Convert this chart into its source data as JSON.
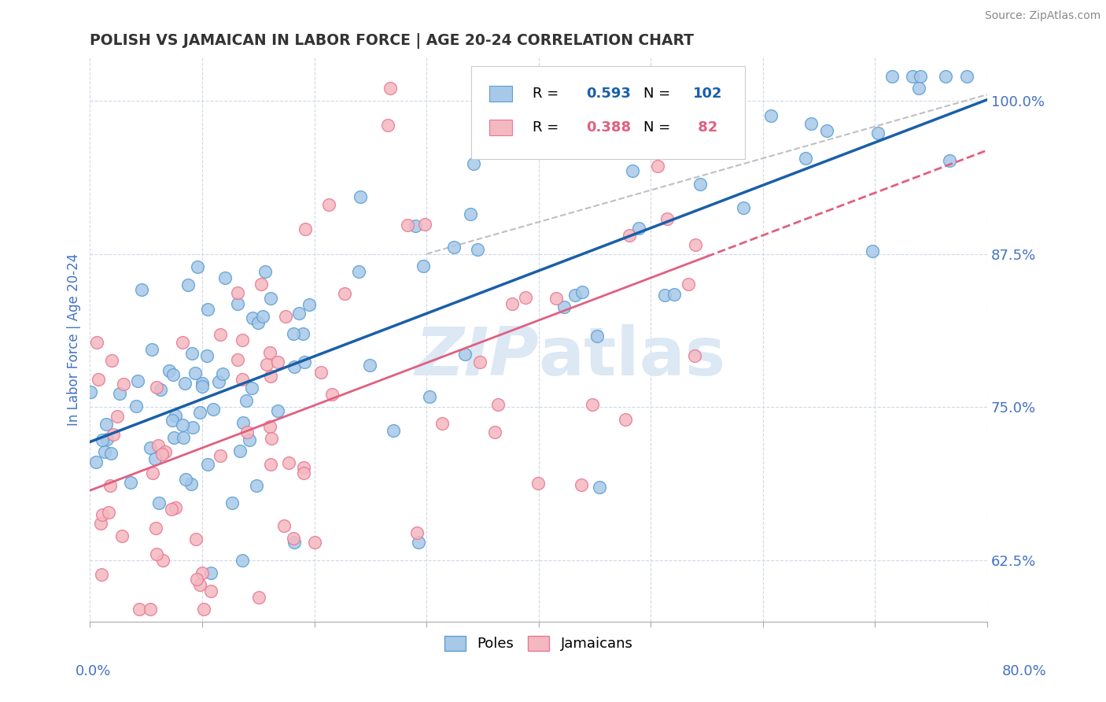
{
  "title": "POLISH VS JAMAICAN IN LABOR FORCE | AGE 20-24 CORRELATION CHART",
  "source": "Source: ZipAtlas.com",
  "ylabel": "In Labor Force | Age 20-24",
  "right_yticks": [
    0.625,
    0.75,
    0.875,
    1.0
  ],
  "right_yticklabels": [
    "62.5%",
    "75.0%",
    "87.5%",
    "100.0%"
  ],
  "xmin": 0.0,
  "xmax": 0.8,
  "ymin": 0.575,
  "ymax": 1.035,
  "poles_R": 0.593,
  "poles_N": 102,
  "jamaicans_R": 0.388,
  "jamaicans_N": 82,
  "blue_color": "#a8c8e8",
  "pink_color": "#f4b8c0",
  "blue_edge_color": "#5a9fd4",
  "pink_edge_color": "#e87890",
  "blue_line_color": "#1a5fa8",
  "pink_line_color": "#e06080",
  "ref_line_color": "#c0c0c0",
  "legend_label_poles": "Poles",
  "legend_label_jamaicans": "Jamaicans",
  "title_color": "#333333",
  "source_color": "#888888",
  "axis_label_color": "#4472c4",
  "tick_color": "#4472c4",
  "background_color": "#ffffff",
  "grid_color": "#d0d8e8",
  "watermark_color": "#dce8f4"
}
